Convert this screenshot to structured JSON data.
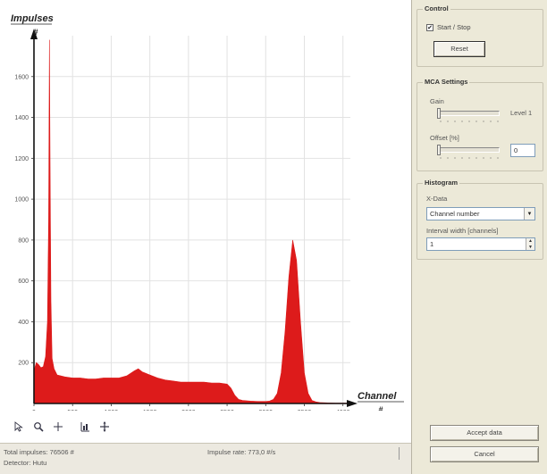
{
  "chart_data": {
    "type": "area",
    "title": "",
    "ylabel": "Impulses",
    "ylabel_unit": "#",
    "xlabel": "Channel",
    "xlabel_unit": "#",
    "xlim": [
      0,
      4096
    ],
    "ylim": [
      0,
      1800
    ],
    "x_ticks": [
      0,
      500,
      1000,
      1500,
      2000,
      2500,
      3000,
      3500,
      4000
    ],
    "y_ticks": [
      200,
      400,
      600,
      800,
      1000,
      1200,
      1400,
      1600
    ],
    "grid": true,
    "series": [
      {
        "color": "#dd1b1b",
        "x": [
          0,
          30,
          60,
          90,
          120,
          150,
          175,
          190,
          200,
          210,
          220,
          235,
          260,
          300,
          400,
          500,
          600,
          700,
          800,
          900,
          1000,
          1100,
          1200,
          1300,
          1350,
          1400,
          1500,
          1600,
          1700,
          1800,
          1900,
          2000,
          2100,
          2200,
          2300,
          2400,
          2500,
          2550,
          2600,
          2650,
          2700,
          2800,
          2900,
          3000,
          3050,
          3100,
          3150,
          3200,
          3250,
          3300,
          3350,
          3400,
          3450,
          3500,
          3550,
          3600,
          3650,
          3700,
          3800,
          3900,
          4000,
          4096
        ],
        "values": [
          160,
          200,
          190,
          175,
          180,
          230,
          400,
          900,
          1780,
          1100,
          500,
          220,
          170,
          140,
          130,
          125,
          125,
          120,
          120,
          125,
          125,
          125,
          135,
          160,
          170,
          155,
          140,
          125,
          115,
          110,
          105,
          105,
          105,
          105,
          100,
          100,
          95,
          75,
          40,
          20,
          15,
          12,
          10,
          10,
          12,
          20,
          50,
          150,
          350,
          620,
          800,
          700,
          400,
          150,
          50,
          15,
          8,
          5,
          3,
          2,
          2,
          2
        ]
      }
    ]
  },
  "toolbar": {
    "icons": [
      "cursor-icon",
      "zoom-icon",
      "crosshair-icon",
      "pan-icon",
      "move-icon"
    ]
  },
  "status": {
    "total_impulses": "Total impulses:  76506 #",
    "impulse_rate": "Impulse rate:  773,0 #/s",
    "detector": "Detector:  Hutu"
  },
  "control": {
    "title": "Control",
    "start_stop_label": "Start / Stop",
    "start_stop_checked": "✔",
    "reset_label": "Reset"
  },
  "mca": {
    "title": "MCA Settings",
    "gain_label": "Gain",
    "gain_level": "Level 1",
    "gain_fraction": 0.0,
    "offset_label": "Offset [%]",
    "offset_value": "0",
    "offset_fraction": 0.0
  },
  "histogram": {
    "title": "Histogram",
    "xdata_label": "X-Data",
    "xdata_value": "Channel number",
    "interval_label": "Interval width [channels]",
    "interval_value": "1"
  },
  "actions": {
    "accept_label": "Accept data",
    "cancel_label": "Cancel"
  }
}
